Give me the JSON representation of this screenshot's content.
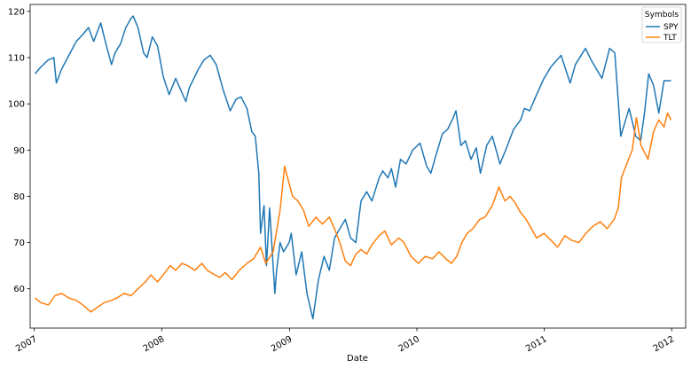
{
  "chart_data": {
    "type": "line",
    "xlabel": "Date",
    "ylabel": "",
    "title": "",
    "x_ticks": [
      "2007",
      "2008",
      "2009",
      "2010",
      "2011",
      "2012"
    ],
    "y_ticks": [
      60,
      70,
      80,
      90,
      100,
      110,
      120
    ],
    "xlim": [
      "2006-12-20",
      "2012-02-10"
    ],
    "ylim": [
      51.5,
      121.5
    ],
    "grid": false,
    "legend": {
      "title": "Symbols",
      "placement": "top-right"
    },
    "series": [
      {
        "name": "SPY",
        "color": "#1f77b4",
        "points": [
          [
            "2007-01-03",
            106.5
          ],
          [
            "2007-01-20",
            108.0
          ],
          [
            "2007-02-10",
            109.5
          ],
          [
            "2007-02-26",
            110.0
          ],
          [
            "2007-03-05",
            104.5
          ],
          [
            "2007-03-20",
            107.5
          ],
          [
            "2007-04-10",
            110.5
          ],
          [
            "2007-05-01",
            113.5
          ],
          [
            "2007-05-20",
            115.0
          ],
          [
            "2007-06-05",
            116.5
          ],
          [
            "2007-06-20",
            113.5
          ],
          [
            "2007-07-10",
            117.5
          ],
          [
            "2007-07-25",
            113.0
          ],
          [
            "2007-08-10",
            108.5
          ],
          [
            "2007-08-20",
            111.0
          ],
          [
            "2007-09-05",
            113.0
          ],
          [
            "2007-09-20",
            116.5
          ],
          [
            "2007-10-05",
            118.5
          ],
          [
            "2007-10-11",
            119.0
          ],
          [
            "2007-10-25",
            116.5
          ],
          [
            "2007-11-10",
            111.0
          ],
          [
            "2007-11-20",
            110.0
          ],
          [
            "2007-12-05",
            114.5
          ],
          [
            "2007-12-20",
            112.5
          ],
          [
            "2008-01-05",
            106.0
          ],
          [
            "2008-01-22",
            102.0
          ],
          [
            "2008-02-10",
            105.5
          ],
          [
            "2008-03-10",
            100.5
          ],
          [
            "2008-03-20",
            103.5
          ],
          [
            "2008-04-15",
            107.5
          ],
          [
            "2008-05-01",
            109.5
          ],
          [
            "2008-05-19",
            110.5
          ],
          [
            "2008-06-05",
            108.5
          ],
          [
            "2008-06-25",
            103.0
          ],
          [
            "2008-07-15",
            98.5
          ],
          [
            "2008-08-01",
            101.0
          ],
          [
            "2008-08-15",
            101.5
          ],
          [
            "2008-09-01",
            99.0
          ],
          [
            "2008-09-15",
            94.0
          ],
          [
            "2008-09-25",
            93.0
          ],
          [
            "2008-10-05",
            85.0
          ],
          [
            "2008-10-10",
            72.0
          ],
          [
            "2008-10-20",
            78.0
          ],
          [
            "2008-10-27",
            65.0
          ],
          [
            "2008-11-05",
            77.5
          ],
          [
            "2008-11-20",
            59.0
          ],
          [
            "2008-11-25",
            64.0
          ],
          [
            "2008-12-05",
            70.0
          ],
          [
            "2008-12-15",
            68.0
          ],
          [
            "2008-12-31",
            70.0
          ],
          [
            "2009-01-06",
            72.0
          ],
          [
            "2009-01-20",
            63.0
          ],
          [
            "2009-02-05",
            68.0
          ],
          [
            "2009-02-20",
            59.0
          ],
          [
            "2009-03-09",
            53.5
          ],
          [
            "2009-03-25",
            62.0
          ],
          [
            "2009-04-10",
            67.0
          ],
          [
            "2009-04-25",
            64.0
          ],
          [
            "2009-05-10",
            71.0
          ],
          [
            "2009-05-25",
            73.0
          ],
          [
            "2009-06-10",
            75.0
          ],
          [
            "2009-06-25",
            71.0
          ],
          [
            "2009-07-10",
            70.0
          ],
          [
            "2009-07-25",
            79.0
          ],
          [
            "2009-08-10",
            81.0
          ],
          [
            "2009-08-25",
            79.0
          ],
          [
            "2009-09-15",
            84.0
          ],
          [
            "2009-09-25",
            85.5
          ],
          [
            "2009-10-10",
            84.0
          ],
          [
            "2009-10-20",
            86.0
          ],
          [
            "2009-11-01",
            82.0
          ],
          [
            "2009-11-15",
            88.0
          ],
          [
            "2009-12-01",
            87.0
          ],
          [
            "2009-12-20",
            90.0
          ],
          [
            "2010-01-10",
            91.5
          ],
          [
            "2010-01-29",
            86.5
          ],
          [
            "2010-02-10",
            85.0
          ],
          [
            "2010-02-25",
            89.0
          ],
          [
            "2010-03-15",
            93.5
          ],
          [
            "2010-03-30",
            94.5
          ],
          [
            "2010-04-15",
            97.0
          ],
          [
            "2010-04-23",
            98.5
          ],
          [
            "2010-05-07",
            91.0
          ],
          [
            "2010-05-20",
            92.0
          ],
          [
            "2010-06-05",
            88.0
          ],
          [
            "2010-06-20",
            90.5
          ],
          [
            "2010-07-02",
            85.0
          ],
          [
            "2010-07-20",
            91.0
          ],
          [
            "2010-08-05",
            93.0
          ],
          [
            "2010-08-27",
            87.0
          ],
          [
            "2010-09-15",
            90.5
          ],
          [
            "2010-10-05",
            94.5
          ],
          [
            "2010-10-25",
            96.5
          ],
          [
            "2010-11-05",
            99.0
          ],
          [
            "2010-11-20",
            98.5
          ],
          [
            "2010-12-10",
            102.0
          ],
          [
            "2010-12-31",
            105.5
          ],
          [
            "2011-01-20",
            108.0
          ],
          [
            "2011-02-18",
            110.5
          ],
          [
            "2011-03-16",
            104.5
          ],
          [
            "2011-03-31",
            108.5
          ],
          [
            "2011-04-29",
            112.0
          ],
          [
            "2011-05-15",
            109.5
          ],
          [
            "2011-06-15",
            105.5
          ],
          [
            "2011-07-07",
            112.0
          ],
          [
            "2011-07-22",
            111.0
          ],
          [
            "2011-08-08",
            93.0
          ],
          [
            "2011-08-20",
            96.0
          ],
          [
            "2011-09-01",
            99.0
          ],
          [
            "2011-09-20",
            93.0
          ],
          [
            "2011-10-04",
            92.0
          ],
          [
            "2011-10-15",
            98.0
          ],
          [
            "2011-10-27",
            106.5
          ],
          [
            "2011-11-10",
            104.0
          ],
          [
            "2011-11-25",
            98.0
          ],
          [
            "2011-12-10",
            105.0
          ],
          [
            "2011-12-30",
            105.0
          ]
        ]
      },
      {
        "name": "TLT",
        "color": "#ff7f0e",
        "points": [
          [
            "2007-01-03",
            58.0
          ],
          [
            "2007-01-20",
            57.0
          ],
          [
            "2007-02-10",
            56.5
          ],
          [
            "2007-03-01",
            58.5
          ],
          [
            "2007-03-20",
            59.0
          ],
          [
            "2007-04-10",
            58.0
          ],
          [
            "2007-05-01",
            57.5
          ],
          [
            "2007-05-20",
            56.5
          ],
          [
            "2007-06-12",
            55.0
          ],
          [
            "2007-07-01",
            56.0
          ],
          [
            "2007-07-20",
            57.0
          ],
          [
            "2007-08-10",
            57.5
          ],
          [
            "2007-08-25",
            58.0
          ],
          [
            "2007-09-15",
            59.0
          ],
          [
            "2007-10-05",
            58.5
          ],
          [
            "2007-10-25",
            60.0
          ],
          [
            "2007-11-15",
            61.5
          ],
          [
            "2007-12-01",
            63.0
          ],
          [
            "2007-12-20",
            61.5
          ],
          [
            "2008-01-10",
            63.5
          ],
          [
            "2008-01-25",
            65.0
          ],
          [
            "2008-02-10",
            64.0
          ],
          [
            "2008-02-28",
            65.5
          ],
          [
            "2008-03-15",
            65.0
          ],
          [
            "2008-04-05",
            64.0
          ],
          [
            "2008-04-25",
            65.5
          ],
          [
            "2008-05-10",
            64.0
          ],
          [
            "2008-06-01",
            63.0
          ],
          [
            "2008-06-15",
            62.5
          ],
          [
            "2008-07-01",
            63.5
          ],
          [
            "2008-07-20",
            62.0
          ],
          [
            "2008-08-10",
            64.0
          ],
          [
            "2008-09-01",
            65.5
          ],
          [
            "2008-09-20",
            66.5
          ],
          [
            "2008-10-10",
            69.0
          ],
          [
            "2008-10-25",
            65.5
          ],
          [
            "2008-11-15",
            68.0
          ],
          [
            "2008-11-25",
            72.5
          ],
          [
            "2008-12-05",
            77.0
          ],
          [
            "2008-12-18",
            86.5
          ],
          [
            "2008-12-30",
            83.0
          ],
          [
            "2009-01-10",
            80.0
          ],
          [
            "2009-01-25",
            79.0
          ],
          [
            "2009-02-10",
            77.0
          ],
          [
            "2009-02-25",
            73.5
          ],
          [
            "2009-03-18",
            75.5
          ],
          [
            "2009-04-05",
            74.0
          ],
          [
            "2009-04-25",
            75.5
          ],
          [
            "2009-05-10",
            73.0
          ],
          [
            "2009-05-25",
            70.0
          ],
          [
            "2009-06-10",
            66.0
          ],
          [
            "2009-06-25",
            65.0
          ],
          [
            "2009-07-10",
            67.5
          ],
          [
            "2009-07-25",
            68.5
          ],
          [
            "2009-08-10",
            67.5
          ],
          [
            "2009-08-25",
            69.5
          ],
          [
            "2009-09-15",
            71.5
          ],
          [
            "2009-10-01",
            72.5
          ],
          [
            "2009-10-20",
            69.5
          ],
          [
            "2009-11-10",
            71.0
          ],
          [
            "2009-11-25",
            70.0
          ],
          [
            "2009-12-15",
            67.0
          ],
          [
            "2010-01-05",
            65.5
          ],
          [
            "2010-01-25",
            67.0
          ],
          [
            "2010-02-15",
            66.5
          ],
          [
            "2010-03-05",
            68.0
          ],
          [
            "2010-03-25",
            66.5
          ],
          [
            "2010-04-10",
            65.5
          ],
          [
            "2010-04-25",
            67.0
          ],
          [
            "2010-05-10",
            70.0
          ],
          [
            "2010-05-25",
            72.0
          ],
          [
            "2010-06-10",
            73.0
          ],
          [
            "2010-06-30",
            75.0
          ],
          [
            "2010-07-15",
            75.5
          ],
          [
            "2010-08-05",
            78.0
          ],
          [
            "2010-08-24",
            82.0
          ],
          [
            "2010-09-10",
            79.0
          ],
          [
            "2010-09-25",
            80.0
          ],
          [
            "2010-10-10",
            78.5
          ],
          [
            "2010-10-25",
            76.5
          ],
          [
            "2010-11-10",
            75.0
          ],
          [
            "2010-11-25",
            73.0
          ],
          [
            "2010-12-10",
            71.0
          ],
          [
            "2010-12-31",
            72.0
          ],
          [
            "2011-01-20",
            70.5
          ],
          [
            "2011-02-08",
            69.0
          ],
          [
            "2011-03-01",
            71.5
          ],
          [
            "2011-03-20",
            70.5
          ],
          [
            "2011-04-10",
            70.0
          ],
          [
            "2011-04-30",
            72.0
          ],
          [
            "2011-05-20",
            73.5
          ],
          [
            "2011-06-10",
            74.5
          ],
          [
            "2011-06-30",
            73.0
          ],
          [
            "2011-07-20",
            75.0
          ],
          [
            "2011-08-01",
            77.5
          ],
          [
            "2011-08-10",
            84.0
          ],
          [
            "2011-08-25",
            87.0
          ],
          [
            "2011-09-10",
            90.0
          ],
          [
            "2011-09-22",
            97.0
          ],
          [
            "2011-10-05",
            91.0
          ],
          [
            "2011-10-25",
            88.0
          ],
          [
            "2011-11-10",
            94.0
          ],
          [
            "2011-11-25",
            96.5
          ],
          [
            "2011-12-10",
            95.0
          ],
          [
            "2011-12-20",
            98.0
          ],
          [
            "2011-12-30",
            96.5
          ]
        ]
      }
    ]
  }
}
